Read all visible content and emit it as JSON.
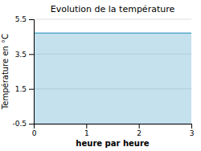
{
  "chart_data": {
    "type": "area",
    "title": "Evolution de la température",
    "x_label": "heure par heure",
    "y_label": "Température en °C",
    "x": [
      0,
      1,
      2,
      3
    ],
    "values": [
      4.7,
      4.7,
      4.7,
      4.7
    ],
    "color": "#55aacc",
    "xlim": [
      0,
      3
    ],
    "ylim": [
      -0.5,
      5.5
    ],
    "xticks": [
      0,
      1,
      2,
      3
    ],
    "yticks": [
      -0.5,
      1.5,
      3.5,
      5.5
    ],
    "grid": true
  }
}
